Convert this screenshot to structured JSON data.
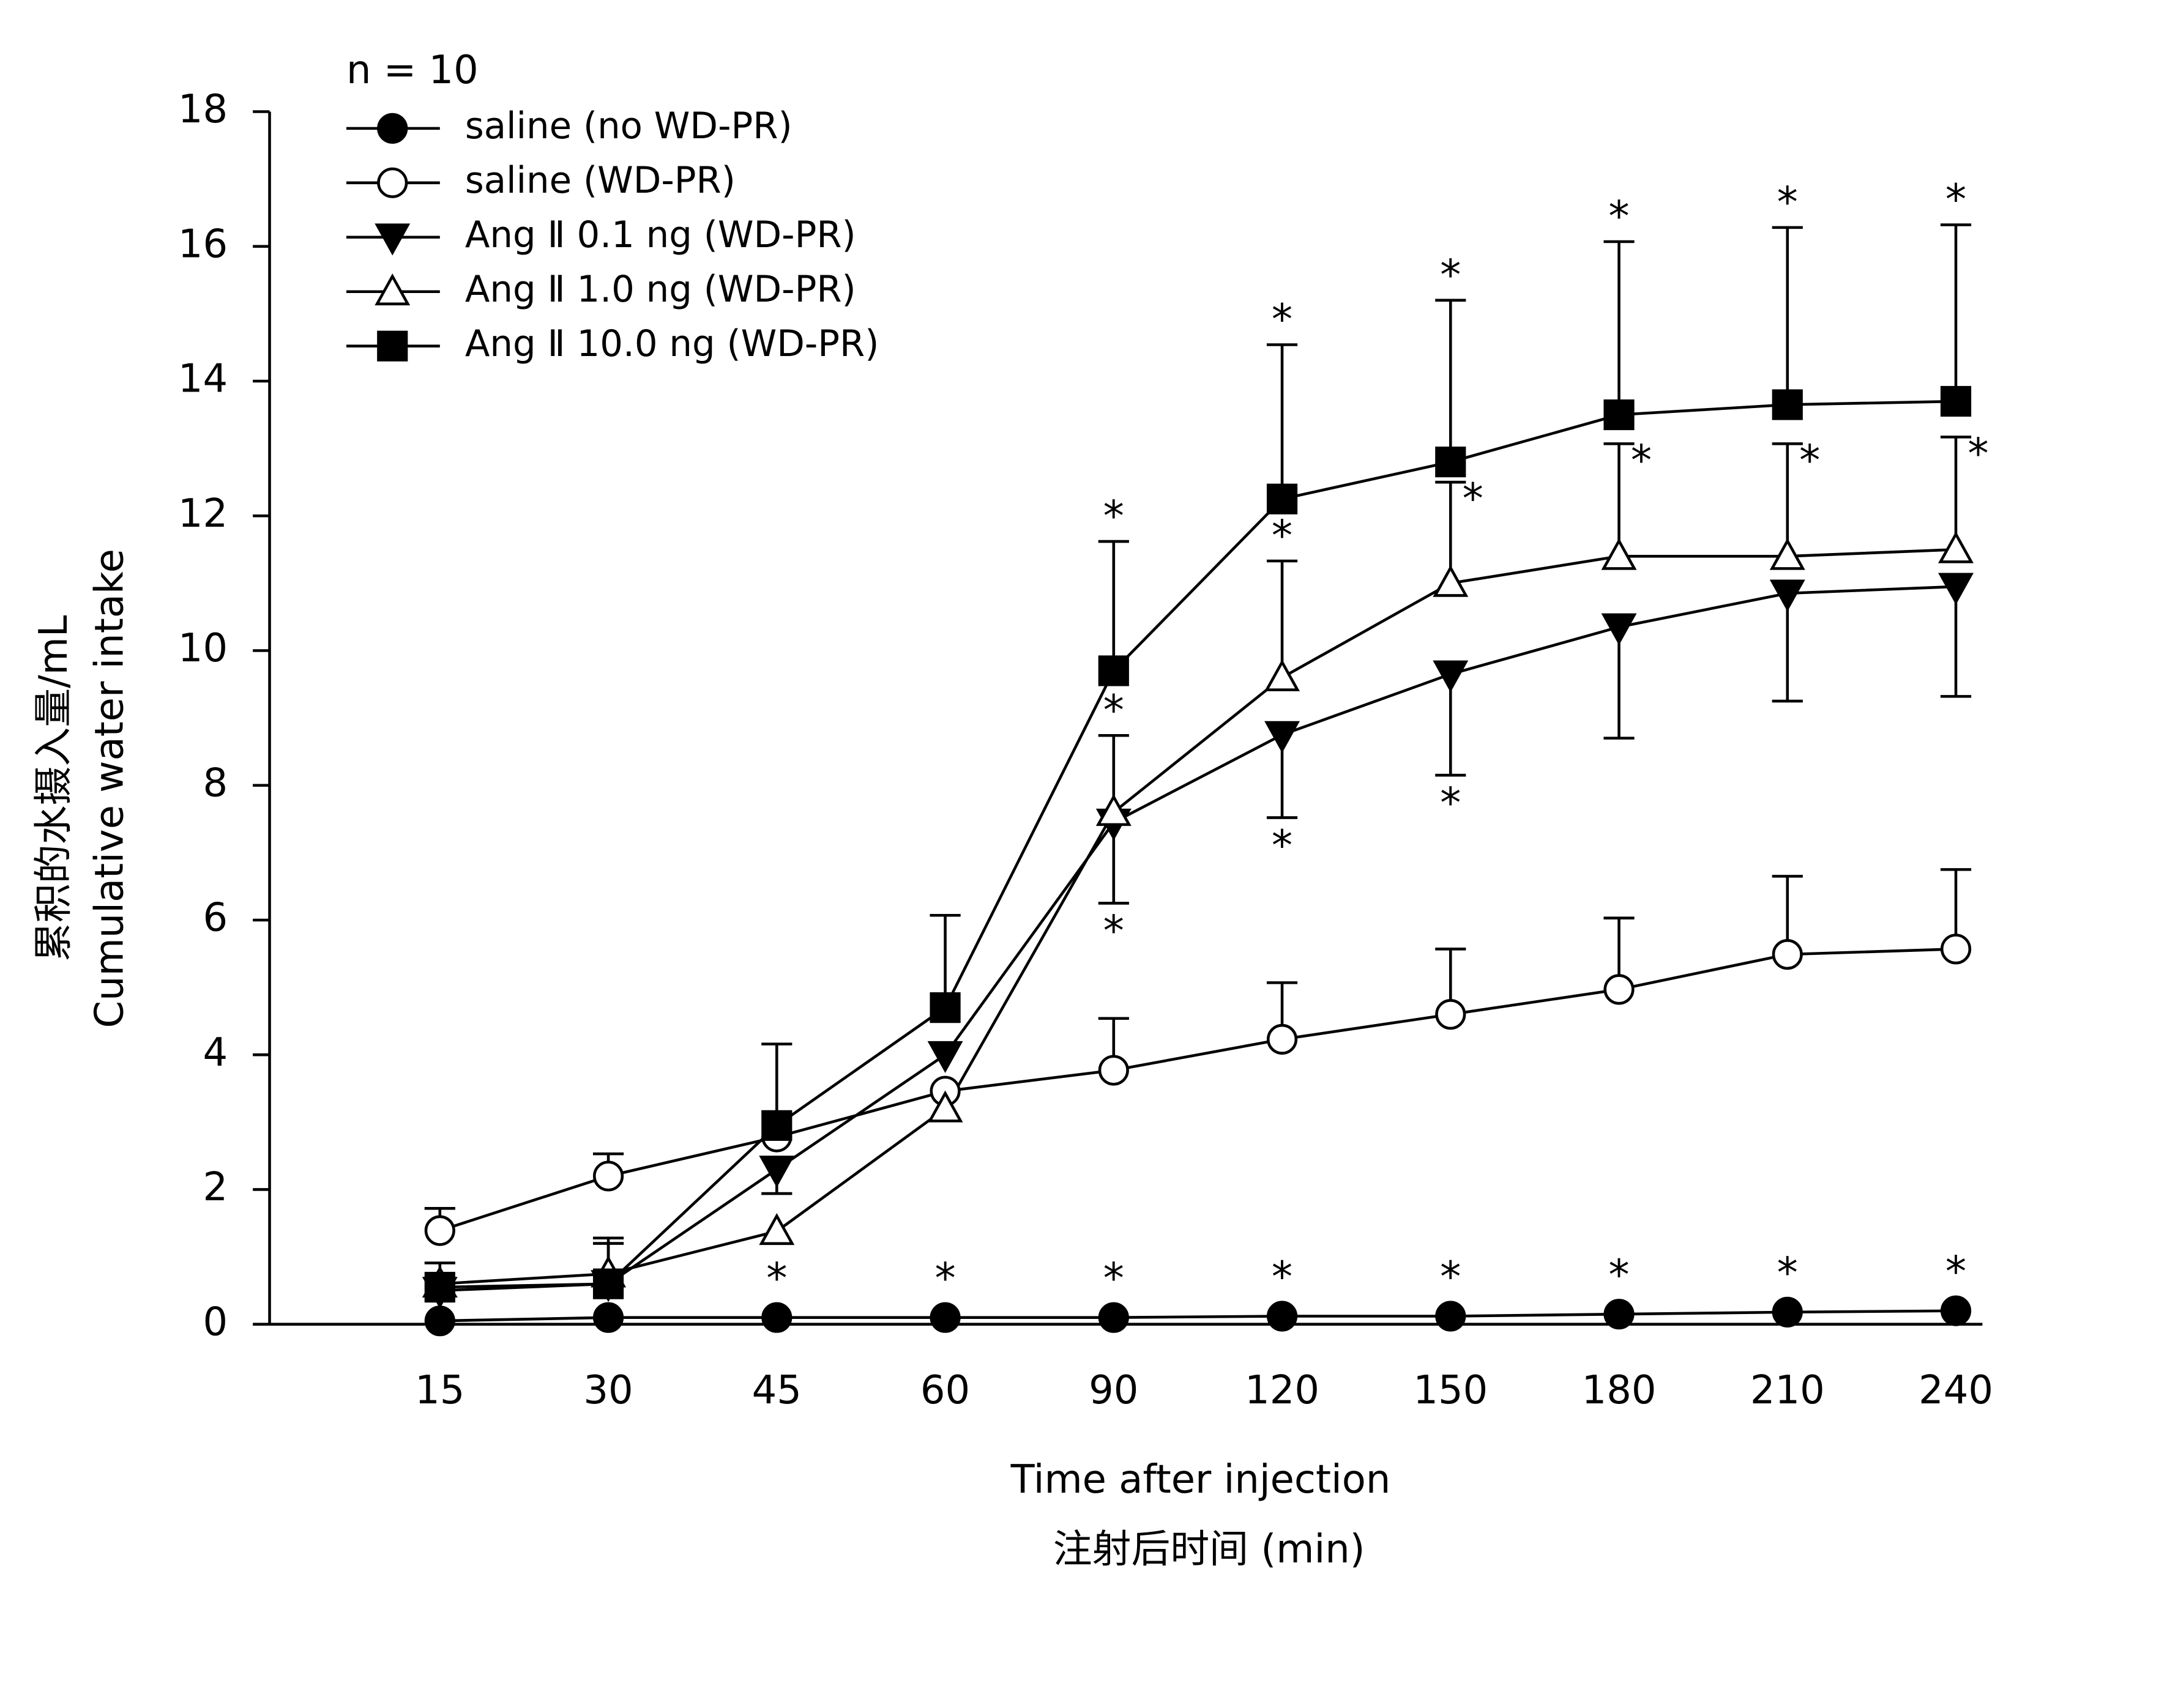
{
  "chart_data": {
    "type": "line",
    "legend_title": "n = 10",
    "y_label": [
      "累积的水摄入量/mL",
      "Cumulative water intake"
    ],
    "x_label": [
      "Time after injection",
      "注射后时间 (min)"
    ],
    "categories": [
      "15",
      "30",
      "45",
      "60",
      "90",
      "120",
      "150",
      "180",
      "210",
      "240"
    ],
    "ylim": [
      0,
      18
    ],
    "yticks": [
      0,
      2,
      4,
      6,
      8,
      10,
      12,
      14,
      16,
      18
    ],
    "legend_position": "upper left",
    "series": [
      {
        "name": "saline (no WD-PR)",
        "color": "#000000",
        "marker": "circle",
        "filled": true,
        "error_direction": "up",
        "values": [
          0.05,
          0.1,
          0.1,
          0.1,
          0.1,
          0.12,
          0.12,
          0.15,
          0.18,
          0.2
        ],
        "errors": [
          null,
          null,
          null,
          null,
          null,
          null,
          null,
          null,
          null,
          null
        ],
        "significance": [
          null,
          null,
          "*",
          "*",
          "*",
          "*",
          "*",
          "*",
          "*",
          "*"
        ]
      },
      {
        "name": "saline (WD-PR)",
        "color": "#000000",
        "marker": "circle",
        "filled": false,
        "error_direction": "up",
        "values": [
          1.39,
          2.2,
          2.78,
          3.46,
          3.77,
          4.23,
          4.6,
          4.97,
          5.49,
          5.57
        ],
        "errors": [
          0.33,
          0.33,
          null,
          null,
          0.77,
          0.84,
          0.97,
          1.06,
          1.16,
          1.18
        ],
        "significance": [
          null,
          null,
          null,
          null,
          null,
          null,
          null,
          null,
          null,
          null
        ]
      },
      {
        "name": "Ang Ⅱ 0.1 ng (WD-PR)",
        "color": "#000000",
        "marker": "triangle-down",
        "filled": true,
        "error_direction": "down",
        "values": [
          0.5,
          0.6,
          2.3,
          4.0,
          7.45,
          8.75,
          9.65,
          10.35,
          10.85,
          10.95
        ],
        "errors": [
          null,
          null,
          0.36,
          null,
          1.2,
          1.23,
          1.5,
          1.65,
          1.6,
          1.63
        ],
        "significance": [
          null,
          null,
          null,
          null,
          "*",
          "*",
          "*",
          null,
          null,
          null
        ]
      },
      {
        "name": "Ang Ⅱ 1.0 ng (WD-PR)",
        "color": "#000000",
        "marker": "triangle-up",
        "filled": false,
        "error_direction": "up",
        "values": [
          0.6,
          0.75,
          1.38,
          3.2,
          7.6,
          9.6,
          11.0,
          11.4,
          11.4,
          11.5
        ],
        "errors": [
          null,
          0.45,
          null,
          null,
          1.14,
          1.73,
          1.5,
          1.67,
          1.67,
          1.67
        ],
        "significance": [
          null,
          null,
          null,
          null,
          "*",
          "*",
          "*",
          "*",
          "*",
          "*"
        ]
      },
      {
        "name": "Ang Ⅱ 10.0 ng (WD-PR)",
        "color": "#000000",
        "marker": "square",
        "filled": true,
        "error_direction": "up",
        "values": [
          0.55,
          0.6,
          2.95,
          4.7,
          9.7,
          12.25,
          12.8,
          13.5,
          13.65,
          13.7
        ],
        "errors": [
          0.36,
          0.68,
          1.21,
          1.37,
          1.92,
          2.29,
          2.4,
          2.57,
          2.63,
          2.62
        ],
        "significance": [
          null,
          null,
          null,
          null,
          "*",
          "*",
          "*",
          "*",
          "*",
          "*"
        ]
      }
    ]
  }
}
